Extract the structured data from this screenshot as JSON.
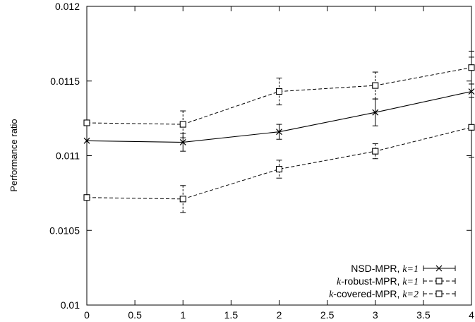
{
  "chart_data": {
    "type": "line",
    "ylabel": "Performance ratio",
    "xlim": [
      0,
      4
    ],
    "ylim": [
      0.01,
      0.012
    ],
    "xticks": [
      0,
      0.5,
      1,
      1.5,
      2,
      2.5,
      3,
      3.5,
      4
    ],
    "xtick_labels": [
      "0",
      "0.5",
      "1",
      "1.5",
      "2",
      "2.5",
      "3",
      "3.5",
      "4"
    ],
    "yticks": [
      0.01,
      0.0105,
      0.011,
      0.0115,
      0.012
    ],
    "ytick_labels": [
      "0.01",
      "0.0105",
      "0.011",
      "0.0115",
      "0.012"
    ],
    "grid": false,
    "legend_position": "bottom-right",
    "x": [
      0,
      1,
      2,
      3,
      4
    ],
    "series": [
      {
        "name_prefix": "NSD-MPR, ",
        "name_k": "k=1",
        "marker": "cross",
        "dash": false,
        "values": [
          0.0111,
          0.01109,
          0.01116,
          0.01129,
          0.01143
        ],
        "err": [
          0.0,
          6e-05,
          5e-05,
          9e-05,
          0.00023
        ]
      },
      {
        "name_prefix": "k-robust-MPR, ",
        "name_k": "k=1",
        "marker": "square",
        "dash": true,
        "values": [
          0.01122,
          0.01121,
          0.01143,
          0.01147,
          0.01159
        ],
        "err": [
          0.0,
          9e-05,
          9e-05,
          9e-05,
          0.00011
        ]
      },
      {
        "name_prefix": "k-covered-MPR, ",
        "name_k": "k=2",
        "marker": "square",
        "dash": true,
        "values": [
          0.01072,
          0.01071,
          0.01091,
          0.01103,
          0.01119
        ],
        "err": [
          0.0,
          9e-05,
          6e-05,
          5e-05,
          0.0002
        ]
      }
    ]
  }
}
